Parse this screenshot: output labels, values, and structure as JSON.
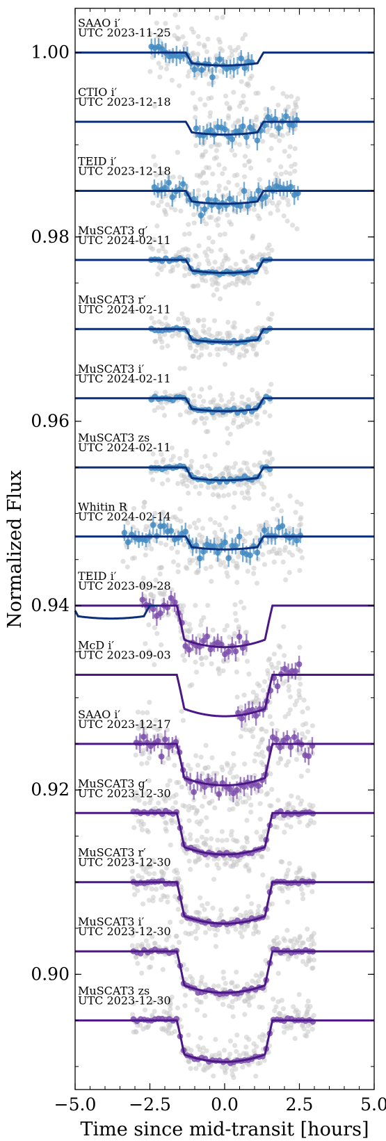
{
  "chart_data": {
    "type": "scatter",
    "title": "",
    "xlabel": "Time since mid-transit [hours]",
    "ylabel": "Normalized Flux",
    "xlim": [
      -5.0,
      5.0
    ],
    "ylim": [
      0.8875,
      1.0048
    ],
    "grid": false,
    "legend": "none",
    "x_ticks": [
      -5.0,
      -2.5,
      0.0,
      2.5,
      5.0
    ],
    "x_tick_labels": [
      "−5.0",
      "−2.5",
      "0.0",
      "2.5",
      "5.0"
    ],
    "y_ticks": [
      1.0,
      0.98,
      0.96,
      0.94,
      0.92,
      0.9
    ],
    "y_tick_labels": [
      "1.00",
      "0.98",
      "0.96",
      "0.94",
      "0.92",
      "0.90"
    ],
    "colors": {
      "planet_b_model": "#0b2f7a",
      "planet_b_points": "#3f8ac2",
      "planet_c_model": "#4b1786",
      "planet_c_points": "#7b4cab",
      "raw_points": "#c8c8c8"
    },
    "series": [
      {
        "label": "SAAO i′",
        "date": "UTC 2023-11-25",
        "planet": "b",
        "offset": 1.0,
        "t_start": -2.5,
        "t_end": 1.0
      },
      {
        "label": "CTIO i′",
        "date": "UTC 2023-12-18",
        "planet": "b",
        "offset": 0.9925,
        "t_start": -1.0,
        "t_end": 2.5
      },
      {
        "label": "TEID i′",
        "date": "UTC 2023-12-18",
        "planet": "b",
        "offset": 0.985,
        "t_start": -2.4,
        "t_end": 2.5
      },
      {
        "label": "MuSCAT3 g′",
        "date": "UTC 2024-02-11",
        "planet": "b",
        "offset": 0.9775,
        "t_start": -2.5,
        "t_end": 1.6
      },
      {
        "label": "MuSCAT3 r′",
        "date": "UTC 2024-02-11",
        "planet": "b",
        "offset": 0.97,
        "t_start": -2.5,
        "t_end": 1.6
      },
      {
        "label": "MuSCAT3 i′",
        "date": "UTC 2024-02-11",
        "planet": "b",
        "offset": 0.9625,
        "t_start": -2.5,
        "t_end": 1.6
      },
      {
        "label": "MuSCAT3 zs",
        "date": "UTC 2024-02-11",
        "planet": "b",
        "offset": 0.955,
        "t_start": -2.5,
        "t_end": 1.6
      },
      {
        "label": "Whitin R",
        "date": "UTC 2024-02-14",
        "planet": "b",
        "offset": 0.9475,
        "t_start": -3.4,
        "t_end": 2.6
      },
      {
        "label": "TEID i′",
        "date": "UTC 2023-09-28",
        "planet": "c",
        "offset": 0.94,
        "t_start": -2.8,
        "t_end": 0.8
      },
      {
        "label": "McD i′",
        "date": "UTC 2023-09-03",
        "planet": "c",
        "offset": 0.9325,
        "t_start": 0.4,
        "t_end": 2.6
      },
      {
        "label": "SAAO i′",
        "date": "UTC 2023-12-17",
        "planet": "c",
        "offset": 0.925,
        "t_start": -3.0,
        "t_end": 3.0
      },
      {
        "label": "MuSCAT3 g′",
        "date": "UTC 2023-12-30",
        "planet": "c",
        "offset": 0.9175,
        "t_start": -3.1,
        "t_end": 3.0
      },
      {
        "label": "MuSCAT3 r′",
        "date": "UTC 2023-12-30",
        "planet": "c",
        "offset": 0.91,
        "t_start": -3.1,
        "t_end": 3.0
      },
      {
        "label": "MuSCAT3 i′",
        "date": "UTC 2023-12-30",
        "planet": "c",
        "offset": 0.9025,
        "t_start": -3.1,
        "t_end": 3.0
      },
      {
        "label": "MuSCAT3 zs",
        "date": "UTC 2023-12-30",
        "planet": "c",
        "offset": 0.895,
        "t_start": -3.1,
        "t_end": 3.0
      }
    ],
    "models": {
      "b": {
        "t_ingress": -1.3,
        "t_egress": 1.3,
        "ingress_duration": 0.2,
        "depth": 0.0014
      },
      "c": {
        "t_ingress": -1.6,
        "t_egress": 1.6,
        "ingress_duration": 0.25,
        "depth": 0.0045
      }
    },
    "extra_model": {
      "planet": "b",
      "offset": 0.94,
      "t_center": -3.8,
      "note": "partial planet b transit in TEID 2023-09-28 panel"
    }
  }
}
